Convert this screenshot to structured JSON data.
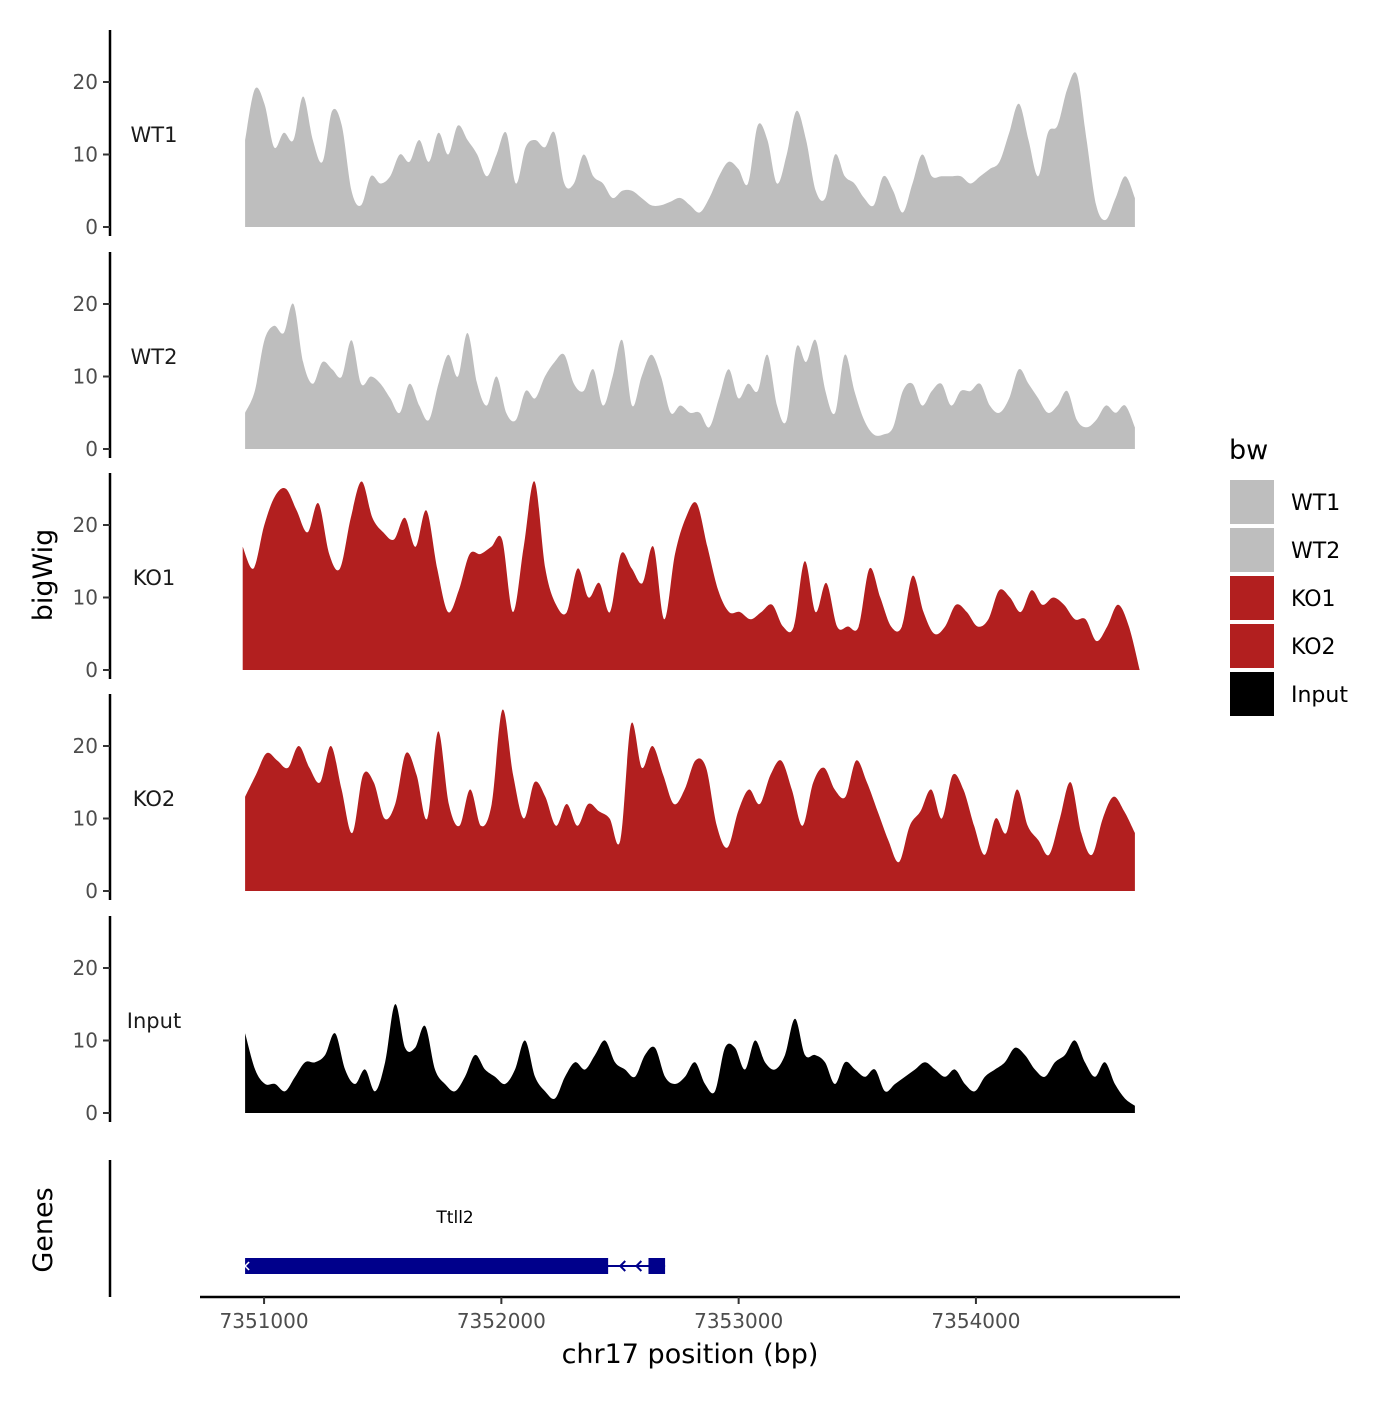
{
  "chart_data": {
    "type": "area",
    "region": {
      "chrom": "chr17",
      "start": 7350920,
      "end": 7354670
    },
    "xlabel": "chr17 position (bp)",
    "ylabel": "bigWig",
    "genes_label": "Genes",
    "x_ticks": [
      7351000,
      7352000,
      7353000,
      7354000
    ],
    "x_tick_labels": [
      "7351000",
      "7352000",
      "7353000",
      "7354000"
    ],
    "xlim": [
      7350730,
      7354860
    ],
    "ylim": [
      0,
      28
    ],
    "y_ticks": [
      0,
      10,
      20
    ],
    "y_tick_labels": [
      "0",
      "10",
      "20"
    ],
    "legend": {
      "title": "bw",
      "items": [
        {
          "label": "WT1",
          "color": "#bebebe"
        },
        {
          "label": "WT2",
          "color": "#bebebe"
        },
        {
          "label": "KO1",
          "color": "#b21f1f"
        },
        {
          "label": "KO2",
          "color": "#b21f1f"
        },
        {
          "label": "Input",
          "color": "#000000"
        }
      ]
    },
    "series": [
      {
        "name": "WT1",
        "color": "#bebebe",
        "x_start": 7350920,
        "x_end": 7354670,
        "values": [
          12,
          19,
          17,
          11,
          13,
          12,
          18,
          12,
          9,
          16,
          14,
          5,
          3,
          7,
          6,
          7,
          10,
          9,
          12,
          9,
          13,
          10,
          14,
          12,
          10,
          7,
          10,
          13,
          6,
          11,
          12,
          11,
          13,
          6,
          6,
          10,
          7,
          6,
          4,
          5,
          5,
          4,
          3,
          3,
          3.5,
          4,
          3,
          2,
          4,
          7,
          9,
          8,
          6,
          14,
          12,
          6,
          10,
          16,
          12,
          5,
          4,
          10,
          7,
          6,
          4,
          3,
          7,
          5,
          2,
          6,
          10,
          7,
          7,
          7,
          7,
          6,
          7,
          8,
          9,
          13,
          17,
          12,
          7,
          13,
          14,
          19,
          21,
          12,
          3,
          1,
          4,
          7,
          4
        ]
      },
      {
        "name": "WT2",
        "color": "#bebebe",
        "x_start": 7350920,
        "x_end": 7354670,
        "values": [
          5,
          8,
          15,
          17,
          16,
          20,
          12,
          9,
          12,
          11,
          10,
          15,
          9,
          10,
          9,
          7,
          5,
          9,
          6,
          4,
          9,
          13,
          10,
          16,
          9,
          6,
          10,
          5,
          4,
          8,
          7,
          10,
          12,
          13,
          9,
          8,
          11,
          6,
          10,
          15,
          6,
          10,
          13,
          10,
          5,
          6,
          5,
          5,
          3,
          7,
          11,
          7,
          9,
          8,
          13,
          6,
          4,
          14,
          12,
          15,
          8,
          5,
          13,
          8,
          4,
          2,
          2,
          3,
          8,
          9,
          6,
          8,
          9,
          6,
          8,
          8,
          9,
          6,
          5,
          7,
          11,
          9,
          7,
          5,
          6,
          8,
          4,
          3,
          4,
          6,
          5,
          6,
          3
        ]
      },
      {
        "name": "KO1",
        "color": "#b21f1f",
        "x_start": 7350910,
        "x_end": 7354690,
        "values": [
          17,
          14,
          20,
          24,
          25,
          22,
          19,
          23,
          16,
          14,
          21,
          26,
          21,
          19,
          18,
          21,
          17,
          22,
          14,
          8,
          11,
          16,
          16,
          17,
          18,
          8,
          17,
          26,
          14,
          9,
          8,
          14,
          10,
          12,
          8,
          16,
          14,
          12,
          17,
          7,
          16,
          21,
          23,
          17,
          11,
          8,
          8,
          7,
          8,
          9,
          6,
          6,
          15,
          8,
          12,
          6,
          6,
          6,
          14,
          10,
          6,
          6,
          13,
          8,
          5,
          6,
          9,
          8,
          6,
          7,
          11,
          10,
          8,
          11,
          9,
          10,
          9,
          7,
          7,
          4,
          6,
          9,
          6,
          0
        ]
      },
      {
        "name": "KO2",
        "color": "#b21f1f",
        "x_start": 7350920,
        "x_end": 7354670,
        "values": [
          13,
          16,
          19,
          18,
          17,
          20,
          17,
          15,
          20,
          14,
          8,
          16,
          15,
          10,
          12,
          19,
          16,
          10,
          22,
          12,
          9,
          14,
          9,
          12,
          25,
          16,
          10,
          15,
          13,
          9,
          12,
          9,
          12,
          11,
          10,
          7,
          23,
          17,
          20,
          16,
          12,
          14,
          18,
          17,
          9,
          6,
          11,
          14,
          12,
          16,
          18,
          14,
          9,
          15,
          17,
          14,
          13,
          18,
          15,
          11,
          7,
          4,
          9,
          11,
          14,
          10,
          16,
          14,
          9,
          5,
          10,
          8,
          14,
          9,
          7,
          5,
          10,
          15,
          8,
          5,
          10,
          13,
          11,
          8
        ]
      },
      {
        "name": "Input",
        "color": "#000000",
        "x_start": 7350920,
        "x_end": 7354670,
        "values": [
          11,
          6,
          4,
          4,
          3,
          5,
          7,
          7,
          8,
          11,
          6,
          4,
          6,
          3,
          7,
          15,
          9,
          9,
          12,
          6,
          4,
          3,
          5,
          8,
          6,
          5,
          4,
          6,
          10,
          5,
          3,
          2,
          5,
          7,
          6,
          8,
          10,
          7,
          6,
          5,
          8,
          9,
          5,
          4,
          5,
          7,
          4,
          3,
          9,
          9,
          6,
          10,
          7,
          6,
          8,
          13,
          8,
          8,
          7,
          4,
          7,
          6,
          5,
          6,
          3,
          4,
          5,
          6,
          7,
          6,
          5,
          6,
          4,
          3,
          5,
          6,
          7,
          9,
          8,
          6,
          5,
          7,
          8,
          10,
          7,
          5,
          7,
          4,
          2,
          1
        ]
      }
    ],
    "genes": [
      {
        "name": "Ttll2",
        "strand": "-",
        "start": 7350920,
        "end": 7352690,
        "exons": [
          [
            7350920,
            7352450
          ],
          [
            7352620,
            7352690
          ]
        ]
      }
    ]
  }
}
